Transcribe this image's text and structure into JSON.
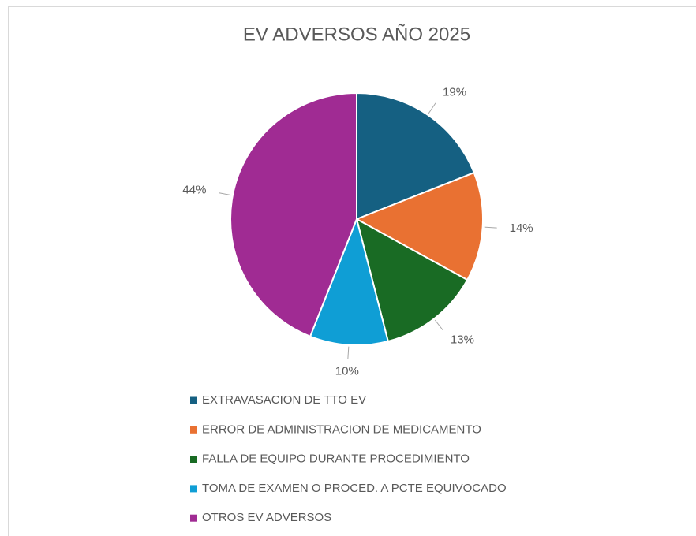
{
  "chart_data": {
    "type": "pie",
    "title": "EV ADVERSOS AÑO 2025",
    "categories": [
      "EXTRAVASACION DE TTO EV",
      "ERROR DE ADMINISTRACION DE MEDICAMENTO",
      "FALLA DE EQUIPO DURANTE PROCEDIMIENTO",
      "TOMA DE EXAMEN O PROCED. A PCTE EQUIVOCADO",
      "OTROS EV ADVERSOS"
    ],
    "values": [
      19,
      14,
      13,
      10,
      44
    ],
    "value_labels": [
      "19%",
      "14%",
      "13%",
      "10%",
      "44%"
    ],
    "colors": [
      "#156082",
      "#e97132",
      "#196b24",
      "#0f9ed5",
      "#a02b93"
    ],
    "legend": "bottom"
  }
}
